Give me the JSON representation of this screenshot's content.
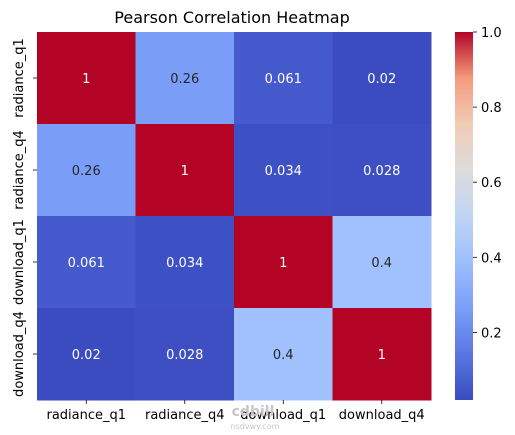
{
  "chart_data": {
    "type": "heatmap",
    "title": "Pearson Correlation Heatmap",
    "x_labels": [
      "radiance_q1",
      "radiance_q4",
      "download_q1",
      "download_q4"
    ],
    "y_labels": [
      "radiance_q1",
      "radiance_q4",
      "download_q1",
      "download_q4"
    ],
    "values": [
      [
        1,
        0.26,
        0.061,
        0.02
      ],
      [
        0.26,
        1,
        0.034,
        0.028
      ],
      [
        0.061,
        0.034,
        1,
        0.4
      ],
      [
        0.02,
        0.028,
        0.4,
        1
      ]
    ],
    "annotations": [
      [
        "1",
        "0.26",
        "0.061",
        "0.02"
      ],
      [
        "0.26",
        "1",
        "0.034",
        "0.028"
      ],
      [
        "0.061",
        "0.034",
        "1",
        "0.4"
      ],
      [
        "0.02",
        "0.028",
        "0.4",
        "1"
      ]
    ],
    "colormap": "coolwarm",
    "colorbar": {
      "range": [
        0.02,
        1.0
      ],
      "ticks": [
        0.2,
        0.4,
        0.6,
        0.8,
        1.0
      ],
      "tick_labels": [
        "0.2",
        "0.4",
        "0.6",
        "0.8",
        "1.0"
      ]
    }
  },
  "watermark": {
    "text": "cdbill",
    "subtext": "nsdvwy.com"
  }
}
